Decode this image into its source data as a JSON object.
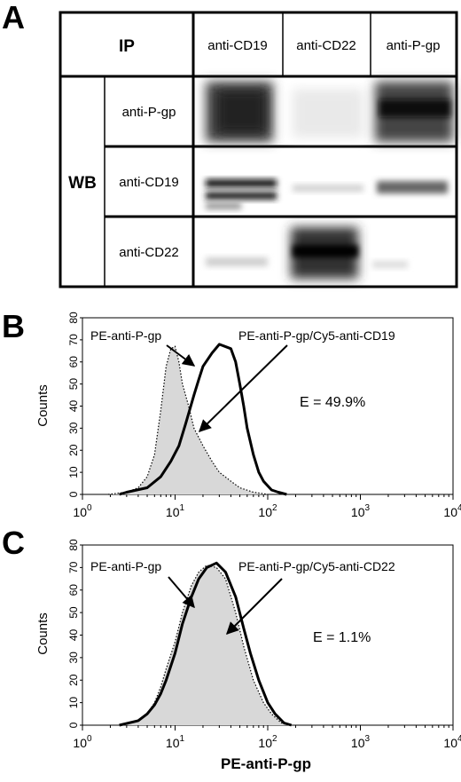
{
  "panels": {
    "a": "A",
    "b": "B",
    "c": "C"
  },
  "blot": {
    "ip_label": "IP",
    "wb_label": "WB",
    "columns": [
      "anti-CD19",
      "anti-CD22",
      "anti-P-gp"
    ],
    "rows": [
      "anti-P-gp",
      "anti-CD19",
      "anti-CD22"
    ]
  },
  "chart_data": [
    {
      "type": "line",
      "panel": "B",
      "ylabel": "Counts",
      "xlabel": "",
      "x_scale": "log",
      "xlim": [
        1,
        10000
      ],
      "ylim": [
        0,
        80
      ],
      "x_tick_labels": [
        "10",
        "10",
        "10",
        "10",
        "10"
      ],
      "x_tick_exponents": [
        "0",
        "1",
        "2",
        "3",
        "4"
      ],
      "y_tick_labels": [
        "0",
        "10",
        "20",
        "30",
        "40",
        "50",
        "60",
        "70",
        "80"
      ],
      "series": [
        {
          "name": "PE-anti-P-gp",
          "style": "dotted-filled",
          "points": [
            [
              1.9,
              0
            ],
            [
              3,
              1
            ],
            [
              4,
              3
            ],
            [
              5,
              8
            ],
            [
              6,
              18
            ],
            [
              7,
              38
            ],
            [
              8,
              58
            ],
            [
              9,
              66
            ],
            [
              10,
              67
            ],
            [
              11,
              60
            ],
            [
              12,
              50
            ],
            [
              14,
              40
            ],
            [
              16,
              30
            ],
            [
              20,
              22
            ],
            [
              25,
              15
            ],
            [
              30,
              10
            ],
            [
              40,
              6
            ],
            [
              50,
              3
            ],
            [
              70,
              1
            ],
            [
              100,
              0
            ]
          ]
        },
        {
          "name": "PE-anti-P-gp/Cy5-anti-CD19",
          "style": "solid-thick",
          "points": [
            [
              2.5,
              0
            ],
            [
              3,
              1
            ],
            [
              5,
              3
            ],
            [
              7,
              8
            ],
            [
              9,
              15
            ],
            [
              11,
              22
            ],
            [
              13,
              32
            ],
            [
              16,
              45
            ],
            [
              18,
              52
            ],
            [
              20,
              58
            ],
            [
              25,
              64
            ],
            [
              30,
              68
            ],
            [
              40,
              66
            ],
            [
              45,
              60
            ],
            [
              50,
              50
            ],
            [
              55,
              40
            ],
            [
              60,
              30
            ],
            [
              70,
              18
            ],
            [
              80,
              10
            ],
            [
              90,
              6
            ],
            [
              110,
              2
            ],
            [
              130,
              1
            ],
            [
              160,
              0
            ]
          ]
        }
      ],
      "annotations": [
        "PE-anti-P-gp",
        "PE-anti-P-gp/Cy5-anti-CD19",
        "E = 49.9%"
      ]
    },
    {
      "type": "line",
      "panel": "C",
      "ylabel": "Counts",
      "xlabel": "PE-anti-P-gp",
      "x_scale": "log",
      "xlim": [
        1,
        10000
      ],
      "ylim": [
        0,
        80
      ],
      "x_tick_labels": [
        "10",
        "10",
        "10",
        "10",
        "10"
      ],
      "x_tick_exponents": [
        "0",
        "1",
        "2",
        "3",
        "4"
      ],
      "y_tick_labels": [
        "0",
        "10",
        "20",
        "30",
        "40",
        "50",
        "60",
        "70",
        "80"
      ],
      "series": [
        {
          "name": "PE-anti-P-gp",
          "style": "dotted-filled",
          "points": [
            [
              2.8,
              0
            ],
            [
              4,
              2
            ],
            [
              5,
              5
            ],
            [
              6,
              10
            ],
            [
              7,
              17
            ],
            [
              8,
              25
            ],
            [
              10,
              37
            ],
            [
              12,
              50
            ],
            [
              15,
              62
            ],
            [
              18,
              68
            ],
            [
              22,
              71
            ],
            [
              28,
              70
            ],
            [
              35,
              65
            ],
            [
              45,
              50
            ],
            [
              55,
              35
            ],
            [
              70,
              20
            ],
            [
              90,
              10
            ],
            [
              110,
              5
            ],
            [
              140,
              1
            ],
            [
              170,
              0
            ]
          ]
        },
        {
          "name": "PE-anti-P-gp/Cy5-anti-CD22",
          "style": "solid-thick",
          "points": [
            [
              2.5,
              0
            ],
            [
              4,
              2
            ],
            [
              5,
              5
            ],
            [
              6,
              9
            ],
            [
              7,
              14
            ],
            [
              8,
              20
            ],
            [
              10,
              32
            ],
            [
              12,
              45
            ],
            [
              15,
              57
            ],
            [
              18,
              65
            ],
            [
              22,
              70
            ],
            [
              28,
              72
            ],
            [
              35,
              68
            ],
            [
              45,
              57
            ],
            [
              55,
              43
            ],
            [
              65,
              32
            ],
            [
              80,
              20
            ],
            [
              100,
              10
            ],
            [
              120,
              5
            ],
            [
              150,
              1
            ],
            [
              180,
              0
            ]
          ]
        }
      ],
      "annotations": [
        "PE-anti-P-gp",
        "PE-anti-P-gp/Cy5-anti-CD22",
        "E = 1.1%"
      ]
    }
  ]
}
